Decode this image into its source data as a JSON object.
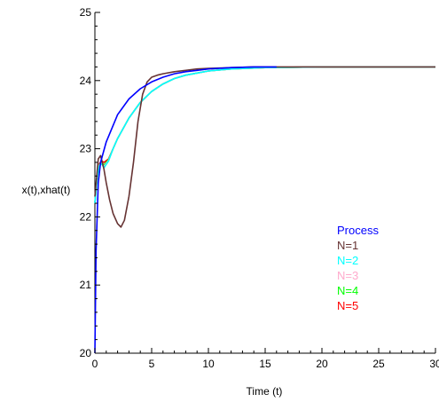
{
  "chart_data": {
    "type": "line",
    "xlabel": "Time (t)",
    "ylabel": "x(t),xhat(t)",
    "xlim": [
      0,
      30
    ],
    "ylim": [
      20,
      25
    ],
    "x_ticks": [
      0,
      5,
      10,
      15,
      20,
      25,
      30
    ],
    "y_ticks": [
      20,
      21,
      22,
      23,
      24,
      25
    ],
    "x_tick_labels": [
      "0",
      "5",
      "10",
      "15",
      "20",
      "25",
      "30"
    ],
    "y_tick_labels": [
      "20",
      "21",
      "22",
      "23",
      "24",
      "25"
    ],
    "grid": false,
    "legend_position": "right-middle",
    "series": [
      {
        "name": "Process",
        "color": "#0000ff",
        "x": [
          0,
          0.1,
          0.3,
          0.5,
          1,
          1.5,
          2,
          3,
          4,
          5,
          6,
          7,
          8,
          9,
          10,
          12,
          14,
          16
        ],
        "y": [
          20.0,
          21.5,
          22.5,
          22.8,
          23.1,
          23.3,
          23.5,
          23.73,
          23.88,
          23.98,
          24.05,
          24.1,
          24.13,
          24.15,
          24.17,
          24.19,
          24.2,
          24.2
        ]
      },
      {
        "name": "N=1",
        "color": "#663333",
        "x": [
          0,
          0.3,
          0.5,
          0.8,
          1,
          1.3,
          1.6,
          2,
          2.3,
          2.6,
          3,
          3.4,
          3.8,
          4.2,
          4.6,
          5,
          5.5,
          6,
          7,
          8,
          9,
          10,
          12,
          14,
          16,
          20,
          25,
          30
        ],
        "y": [
          22.3,
          22.85,
          22.9,
          22.7,
          22.5,
          22.25,
          22.05,
          21.9,
          21.85,
          21.95,
          22.3,
          22.8,
          23.4,
          23.8,
          23.98,
          24.05,
          24.08,
          24.1,
          24.13,
          24.15,
          24.17,
          24.18,
          24.19,
          24.2,
          24.2,
          24.2,
          24.2,
          24.2
        ]
      },
      {
        "name": "N=2",
        "color": "#00ffff",
        "x": [
          0,
          0.2,
          0.4,
          0.6,
          0.8,
          1.2,
          1.6,
          2,
          3,
          4,
          5,
          6,
          7,
          8,
          10,
          12,
          15,
          20,
          30
        ],
        "y": [
          22.2,
          22.6,
          22.75,
          22.78,
          22.72,
          22.82,
          23.0,
          23.15,
          23.45,
          23.68,
          23.84,
          23.95,
          24.03,
          24.08,
          24.14,
          24.17,
          24.19,
          24.2,
          24.2
        ]
      },
      {
        "name": "N=3",
        "color": "#ffaacc",
        "x": [
          0,
          0.2,
          0.4,
          0.6,
          0.8,
          1.2,
          1.6,
          2,
          3,
          4,
          5,
          6,
          7,
          8,
          10,
          12,
          15,
          20,
          30
        ],
        "y": [
          22.2,
          22.6,
          22.76,
          22.79,
          22.74,
          22.83,
          23.0,
          23.15,
          23.45,
          23.68,
          23.84,
          23.95,
          24.03,
          24.08,
          24.14,
          24.17,
          24.19,
          24.2,
          24.2
        ]
      },
      {
        "name": "N=4",
        "color": "#00ff00",
        "x": [
          0,
          0.2,
          0.4,
          0.6,
          0.8,
          1.2,
          1.6,
          2,
          3,
          4,
          5,
          6,
          7,
          8,
          10,
          12,
          15,
          20,
          30
        ],
        "y": [
          22.2,
          22.6,
          22.77,
          22.8,
          22.76,
          22.84,
          23.0,
          23.15,
          23.45,
          23.68,
          23.84,
          23.95,
          24.03,
          24.08,
          24.14,
          24.17,
          24.19,
          24.2,
          24.2
        ]
      },
      {
        "name": "N=5",
        "color": "#ff0000",
        "x": [
          0,
          0.2,
          0.4,
          0.6,
          0.8,
          1.2,
          1.6,
          2,
          3,
          4,
          5,
          6,
          7,
          8,
          10,
          12,
          15,
          20,
          25,
          30
        ],
        "y": [
          22.2,
          22.6,
          22.78,
          22.82,
          22.8,
          22.85,
          23.0,
          23.15,
          23.45,
          23.68,
          23.84,
          23.95,
          24.03,
          24.08,
          24.14,
          24.17,
          24.19,
          24.2,
          24.2,
          24.2
        ]
      }
    ]
  }
}
